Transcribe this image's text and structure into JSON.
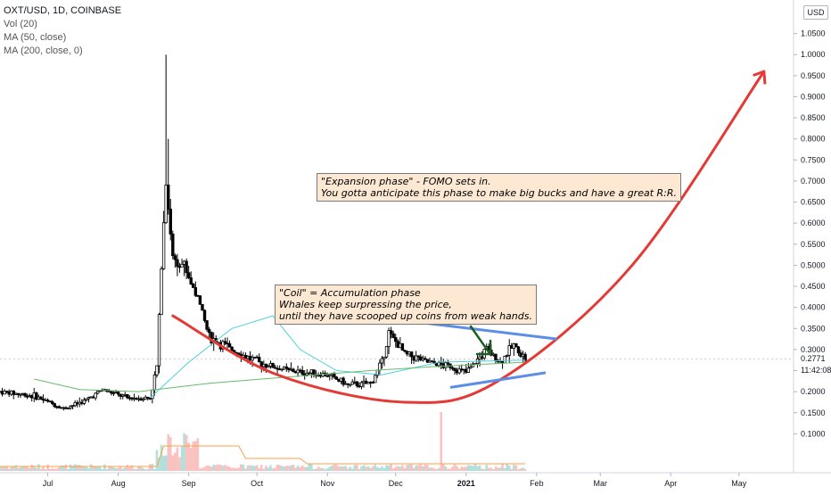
{
  "legend": {
    "symbol": "OXT/USD, 1D, COINBASE",
    "indicators": [
      "Vol (20)",
      "MA (50, close)",
      "MA (200, close, 0)"
    ]
  },
  "price_axis": {
    "currency": "USD",
    "last_price": "0.2771",
    "countdown": "11:42:08"
  },
  "annotations": {
    "coil": [
      "\"Coil\" = Accumulation phase",
      "Whales keep surpressing the price,",
      "until they have scooped up coins from weak hands."
    ],
    "expansion": [
      "\"Expansion phase\" - FOMO sets in.",
      "You gotta anticipate this phase to make big bucks and have a great R:R."
    ]
  },
  "colors": {
    "up": "#26a69a",
    "down": "#ef5350",
    "candle": "#000000",
    "ma50": "#4dd0e1",
    "ma200": "#66bb6a",
    "curve": "#e53935",
    "trendline": "#5c8ee6",
    "arrow": "#1b5e20",
    "volume_ma": "#ff9f43",
    "annotation_bg": "#fde9d3"
  },
  "chart_data": {
    "type": "candlestick",
    "x_axis_labels": [
      "Jul",
      "Aug",
      "Sep",
      "Oct",
      "Nov",
      "Dec",
      "2021",
      "Feb",
      "Mar",
      "Apr",
      "May"
    ],
    "y_axis_labels": [
      "1.0500",
      "1.0000",
      "0.9500",
      "0.9000",
      "0.8500",
      "0.8000",
      "0.7500",
      "0.7000",
      "0.6500",
      "0.6000",
      "0.5500",
      "0.5000",
      "0.4500",
      "0.4000",
      "0.3500",
      "0.3000",
      "0.2500",
      "0.2000",
      "0.1500",
      "0.1000"
    ],
    "ylim": [
      0.05,
      1.1
    ],
    "price_series": [
      [
        "2020-06-10",
        0.2
      ],
      [
        "2020-06-25",
        0.19
      ],
      [
        "2020-07-08",
        0.16
      ],
      [
        "2020-07-18",
        0.18
      ],
      [
        "2020-07-25",
        0.205
      ],
      [
        "2020-08-05",
        0.185
      ],
      [
        "2020-08-15",
        0.185
      ],
      [
        "2020-08-18",
        0.26
      ],
      [
        "2020-08-20",
        0.5
      ],
      [
        "2020-08-22",
        0.7
      ],
      [
        "2020-08-25",
        0.52
      ],
      [
        "2020-08-30",
        0.5
      ],
      [
        "2020-09-05",
        0.42
      ],
      [
        "2020-09-10",
        0.33
      ],
      [
        "2020-09-20",
        0.3
      ],
      [
        "2020-10-01",
        0.27
      ],
      [
        "2020-10-15",
        0.25
      ],
      [
        "2020-11-01",
        0.24
      ],
      [
        "2020-11-10",
        0.215
      ],
      [
        "2020-11-20",
        0.22
      ],
      [
        "2020-11-25",
        0.27
      ],
      [
        "2020-11-28",
        0.34
      ],
      [
        "2020-12-05",
        0.29
      ],
      [
        "2020-12-15",
        0.27
      ],
      [
        "2020-12-25",
        0.26
      ],
      [
        "2021-01-01",
        0.245
      ],
      [
        "2021-01-10",
        0.3
      ],
      [
        "2021-01-16",
        0.27
      ],
      [
        "2021-01-22",
        0.31
      ],
      [
        "2021-01-27",
        0.277
      ]
    ],
    "ma50_series": [
      [
        "2020-08-15",
        0.185
      ],
      [
        "2020-09-01",
        0.27
      ],
      [
        "2020-09-20",
        0.35
      ],
      [
        "2020-10-08",
        0.38
      ],
      [
        "2020-10-20",
        0.3
      ],
      [
        "2020-11-05",
        0.25
      ],
      [
        "2020-11-25",
        0.24
      ],
      [
        "2020-12-20",
        0.27
      ],
      [
        "2021-01-27",
        0.275
      ]
    ],
    "ma200_series": [
      [
        "2020-06-25",
        0.23
      ],
      [
        "2020-07-15",
        0.205
      ],
      [
        "2020-08-10",
        0.2
      ],
      [
        "2020-09-10",
        0.22
      ],
      [
        "2020-10-15",
        0.235
      ],
      [
        "2020-11-20",
        0.25
      ],
      [
        "2020-12-20",
        0.26
      ],
      [
        "2021-01-27",
        0.27
      ]
    ],
    "drawings": {
      "curve": [
        [
          "2020-08-25",
          0.38
        ],
        [
          "2020-10-10",
          0.24
        ],
        [
          "2020-12-05",
          0.175
        ],
        [
          "2021-01-15",
          0.225
        ],
        [
          "2021-03-15",
          0.5
        ],
        [
          "2021-05-12",
          0.96
        ]
      ],
      "upper_trendline": [
        [
          "2020-11-25",
          0.375
        ],
        [
          "2021-02-10",
          0.325
        ]
      ],
      "lower_trendline": [
        [
          "2020-12-25",
          0.21
        ],
        [
          "2021-02-05",
          0.245
        ]
      ]
    }
  }
}
